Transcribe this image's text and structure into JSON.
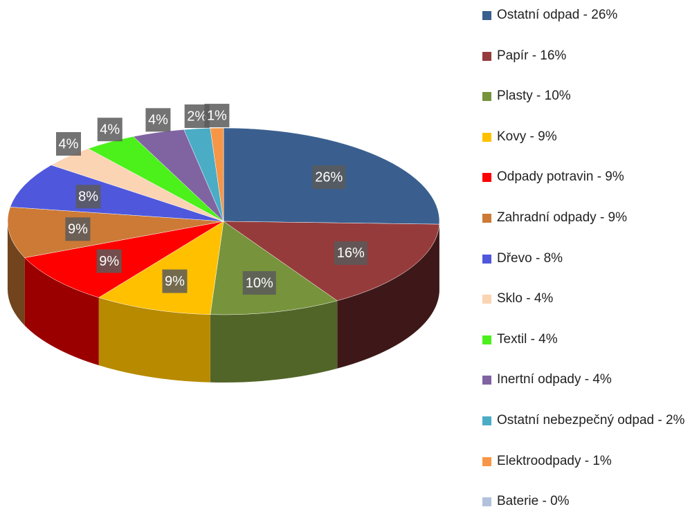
{
  "chart_data": {
    "type": "pie3d",
    "categories": [
      "Ostatní odpad - 26%",
      "Papír - 16%",
      "Plasty - 10%",
      "Kovy - 9%",
      "Odpady potravin - 9%",
      "Zahradní odpady - 9%",
      "Dřevo - 8%",
      "Sklo - 4%",
      "Textil - 4%",
      "Inertní odpady - 4%",
      "Ostatní nebezpečný odpad - 2%",
      "Elektroodpady - 1%",
      "Baterie - 0%"
    ],
    "values": [
      26,
      16,
      10,
      9,
      9,
      9,
      8,
      4,
      4,
      4,
      2,
      1,
      0
    ],
    "value_labels": [
      "26%",
      "16%",
      "10%",
      "9%",
      "9%",
      "9%",
      "8%",
      "4%",
      "4%",
      "4%",
      "2%",
      "1%",
      null
    ],
    "colors": [
      "#3a5f8f",
      "#963b3b",
      "#77933c",
      "#ffc000",
      "#ff0000",
      "#cc7a36",
      "#4f58dc",
      "#fbd4b4",
      "#4cf01b",
      "#8064a2",
      "#4bacc6",
      "#f79646",
      "#b2c2dd"
    ],
    "legend": "right"
  }
}
